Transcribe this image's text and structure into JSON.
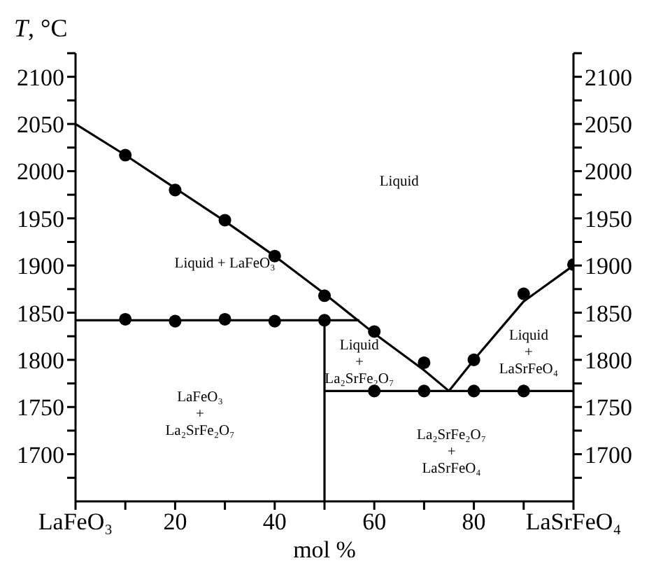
{
  "chart_data": {
    "type": "line",
    "xlabel": "mol %",
    "ylabel": "T, °C",
    "xlim": [
      0,
      100
    ],
    "xticks": [
      {
        "value": 0,
        "label": "LaFeO₃"
      },
      {
        "value": 10,
        "label": null
      },
      20,
      {
        "value": 30,
        "label": null
      },
      40,
      {
        "value": 50,
        "label": null
      },
      60,
      {
        "value": 70,
        "label": null
      },
      80,
      {
        "value": 90,
        "label": null
      },
      {
        "value": 100,
        "label": "LaSrFeO₄"
      }
    ],
    "ylim": [
      1650,
      2125
    ],
    "yticks": [
      {
        "value": 1675,
        "label": null
      },
      1700,
      {
        "value": 1725,
        "label": null
      },
      1750,
      {
        "value": 1775,
        "label": null
      },
      1800,
      {
        "value": 1825,
        "label": null
      },
      1850,
      {
        "value": 1875,
        "label": null
      },
      1900,
      {
        "value": 1925,
        "label": null
      },
      1950,
      {
        "value": 1975,
        "label": null
      },
      2000,
      {
        "value": 2025,
        "label": null
      },
      2050,
      {
        "value": 2075,
        "label": null
      },
      2100,
      {
        "value": 2125,
        "label": null
      }
    ],
    "y2lim": [
      1650,
      2125
    ],
    "y2ticks": [
      {
        "value": 1675,
        "label": null
      },
      1700,
      {
        "value": 1725,
        "label": null
      },
      1750,
      {
        "value": 1775,
        "label": null
      },
      1800,
      {
        "value": 1825,
        "label": null
      },
      1850,
      {
        "value": 1875,
        "label": null
      },
      1900,
      {
        "value": 1925,
        "label": null
      },
      1950,
      {
        "value": 1975,
        "label": null
      },
      2000,
      {
        "value": 2025,
        "label": null
      },
      2050,
      {
        "value": 2075,
        "label": null
      },
      2100,
      {
        "value": 2125,
        "label": null
      }
    ],
    "grid": false,
    "line_style": "solid",
    "series": [
      {
        "color": "#000000",
        "marker": "none",
        "x": [
          0,
          10,
          20,
          30,
          40,
          50,
          60,
          70,
          75
        ],
        "values": [
          2050,
          2017,
          1982,
          1947,
          1910,
          1870,
          1828,
          1789,
          1767
        ]
      },
      {
        "color": "#000000",
        "marker": "none",
        "x": [
          75,
          80,
          90,
          100
        ],
        "values": [
          1767,
          1800,
          1862,
          1900
        ]
      },
      {
        "color": "#000000",
        "marker": "none",
        "x": [
          0,
          57
        ],
        "values": [
          1842,
          1842
        ]
      },
      {
        "color": "#000000",
        "marker": "none",
        "x": [
          50,
          100
        ],
        "values": [
          1767,
          1767
        ]
      },
      {
        "color": "#000000",
        "marker": "none",
        "x": [
          50,
          50
        ],
        "values": [
          1650,
          1842
        ]
      },
      {
        "type": "scatter",
        "color": "#000000",
        "marker": "circle",
        "x": [
          10,
          20,
          30,
          40,
          50,
          10,
          20,
          30,
          40,
          50,
          60,
          70,
          60,
          70,
          80,
          90,
          80,
          90,
          100
        ],
        "values": [
          2017,
          1980,
          1948,
          1910,
          1868,
          1843,
          1841,
          1843,
          1841,
          1842,
          1830,
          1797,
          1767,
          1767,
          1767,
          1767,
          1800,
          1870,
          1901
        ]
      }
    ],
    "annotations": [
      "Liquid",
      "Liquid + LaFeO₃",
      "LaFeO₃\n+\nLa₂SrFe₂O₇",
      "Liquid\n+\nLa₂SrFe₂O₇",
      "Liquid\n+\nLaSrFeO₄",
      "La₂SrFe₂O₇\n+\nLaSrFeO₄"
    ]
  }
}
